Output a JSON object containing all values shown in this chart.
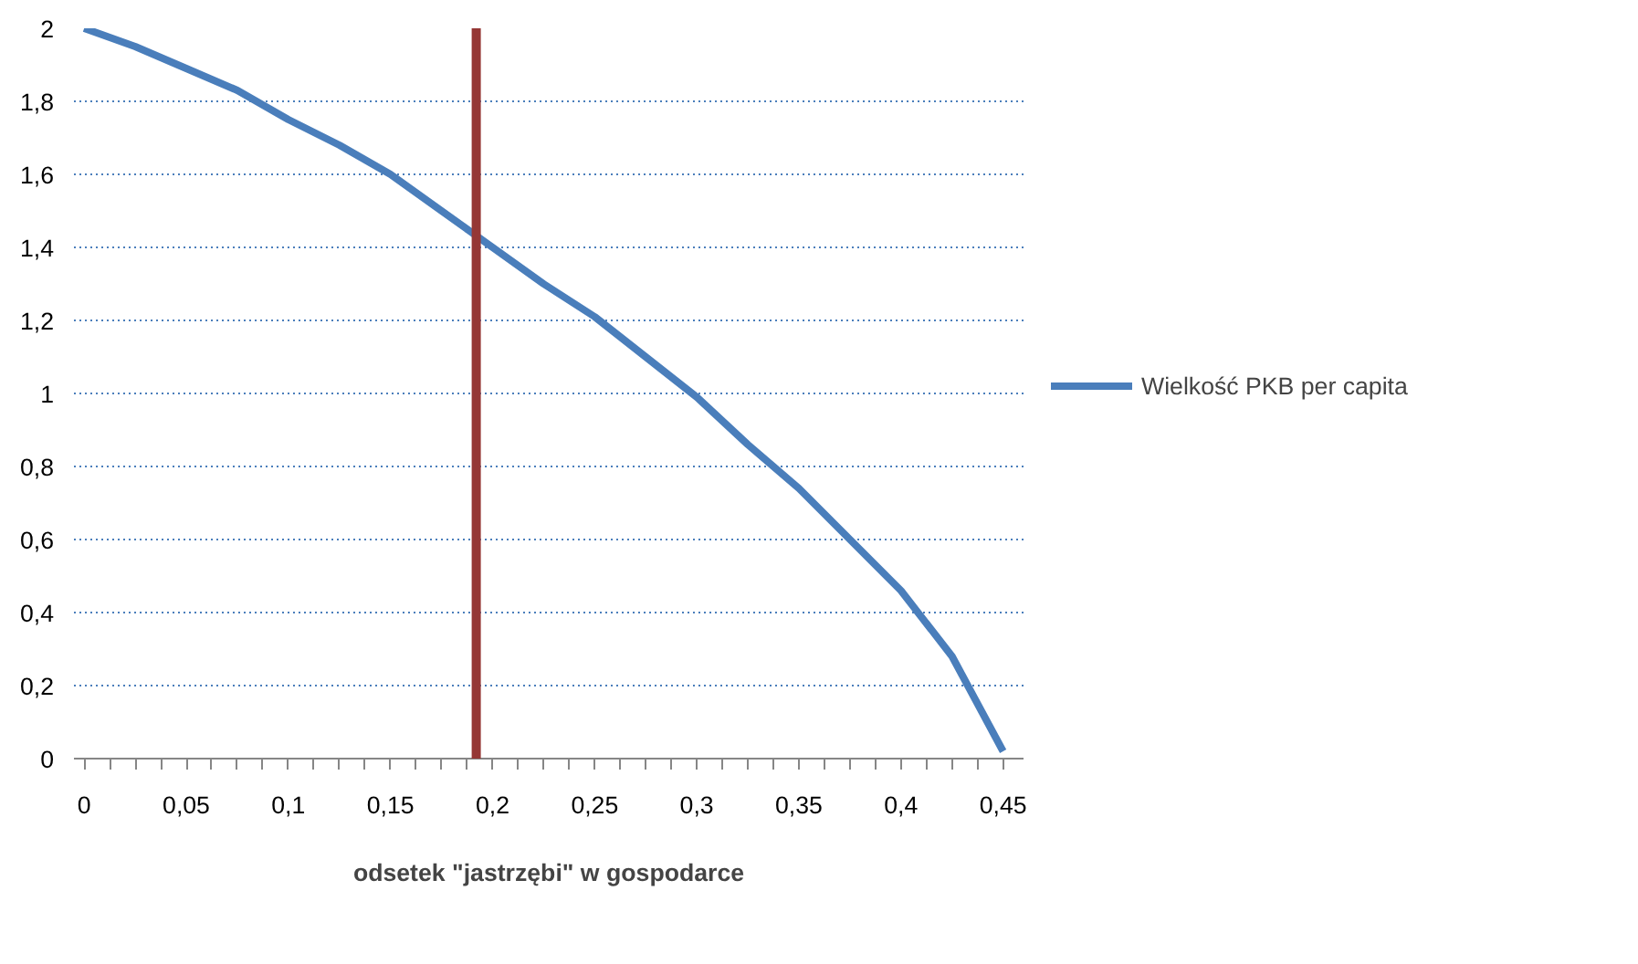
{
  "chart_data": {
    "type": "line",
    "xlabel": "odsetek \"jastrzębi\" w gospodarce",
    "x": [
      0,
      0.025,
      0.05,
      0.075,
      0.1,
      0.125,
      0.15,
      0.175,
      0.2,
      0.225,
      0.25,
      0.275,
      0.3,
      0.325,
      0.35,
      0.375,
      0.4,
      0.425,
      0.45
    ],
    "series": [
      {
        "name": "Wielkość PKB per capita",
        "color": "#4a7ebb",
        "values": [
          2.0,
          1.95,
          1.89,
          1.83,
          1.75,
          1.68,
          1.6,
          1.5,
          1.4,
          1.3,
          1.21,
          1.1,
          0.99,
          0.86,
          0.74,
          0.6,
          0.46,
          0.28,
          0.02
        ]
      }
    ],
    "xlim": [
      -0.005,
      0.46
    ],
    "ylim": [
      0,
      2
    ],
    "xticks": [
      0,
      {
        "value": 0.0125,
        "label": null
      },
      {
        "value": 0.025,
        "label": null
      },
      {
        "value": 0.0375,
        "label": null
      },
      {
        "value": 0.05,
        "label": "0,05"
      },
      {
        "value": 0.0625,
        "label": null
      },
      {
        "value": 0.075,
        "label": null
      },
      {
        "value": 0.0875,
        "label": null
      },
      {
        "value": 0.1,
        "label": "0,1"
      },
      {
        "value": 0.1125,
        "label": null
      },
      {
        "value": 0.125,
        "label": null
      },
      {
        "value": 0.1375,
        "label": null
      },
      {
        "value": 0.15,
        "label": "0,15"
      },
      {
        "value": 0.1625,
        "label": null
      },
      {
        "value": 0.175,
        "label": null
      },
      {
        "value": 0.1875,
        "label": null
      },
      {
        "value": 0.2,
        "label": "0,2"
      },
      {
        "value": 0.2125,
        "label": null
      },
      {
        "value": 0.225,
        "label": null
      },
      {
        "value": 0.2375,
        "label": null
      },
      {
        "value": 0.25,
        "label": "0,25"
      },
      {
        "value": 0.2625,
        "label": null
      },
      {
        "value": 0.275,
        "label": null
      },
      {
        "value": 0.2875,
        "label": null
      },
      {
        "value": 0.3,
        "label": "0,3"
      },
      {
        "value": 0.3125,
        "label": null
      },
      {
        "value": 0.325,
        "label": null
      },
      {
        "value": 0.3375,
        "label": null
      },
      {
        "value": 0.35,
        "label": "0,35"
      },
      {
        "value": 0.3625,
        "label": null
      },
      {
        "value": 0.375,
        "label": null
      },
      {
        "value": 0.3875,
        "label": null
      },
      {
        "value": 0.4,
        "label": "0,4"
      },
      {
        "value": 0.4125,
        "label": null
      },
      {
        "value": 0.425,
        "label": null
      },
      {
        "value": 0.4375,
        "label": null
      },
      {
        "value": 0.45,
        "label": "0,45"
      }
    ],
    "yticks": [
      0,
      {
        "value": 0.2,
        "label": "0,2"
      },
      {
        "value": 0.4,
        "label": "0,4"
      },
      {
        "value": 0.6,
        "label": "0,6"
      },
      {
        "value": 0.8,
        "label": "0,8"
      },
      1,
      {
        "value": 1.2,
        "label": "1,2"
      },
      {
        "value": 1.4,
        "label": "1,4"
      },
      {
        "value": 1.6,
        "label": "1,6"
      },
      {
        "value": 1.8,
        "label": "1,8"
      },
      2
    ],
    "ref_lines": [
      {
        "axis": "x",
        "value": 0.192,
        "color": "#953735"
      }
    ],
    "grid": "y",
    "legend": "right",
    "line_style": "solid",
    "marker": "none"
  }
}
